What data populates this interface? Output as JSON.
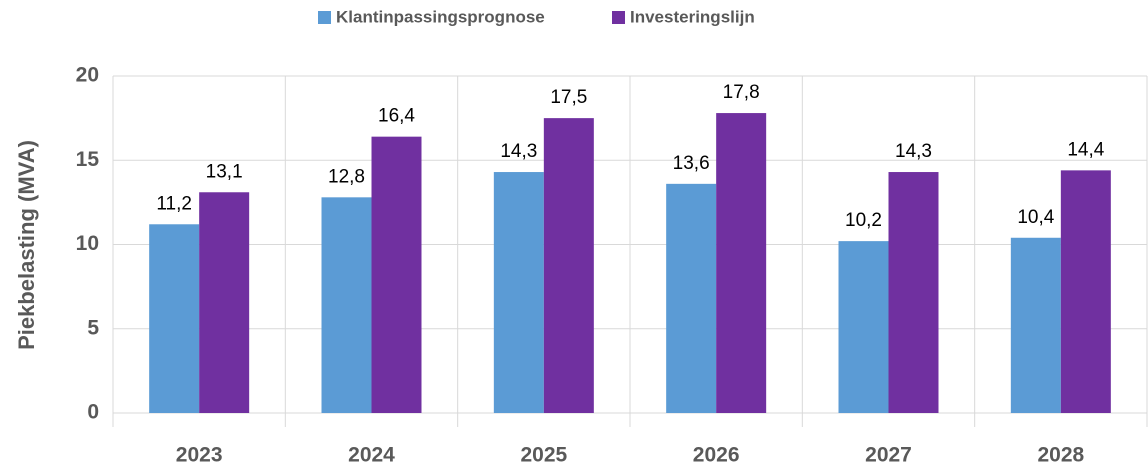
{
  "chart_data": {
    "type": "bar",
    "categories": [
      "2023",
      "2024",
      "2025",
      "2026",
      "2027",
      "2028"
    ],
    "series": [
      {
        "name": "Klantinpassingsprognose",
        "color": "#5b9bd5",
        "values": [
          11.2,
          12.8,
          14.3,
          13.6,
          10.2,
          10.4
        ],
        "value_labels": [
          "11,2",
          "12,8",
          "14,3",
          "13,6",
          "10,2",
          "10,4"
        ]
      },
      {
        "name": "Investeringslijn",
        "color": "#7030a0",
        "values": [
          13.1,
          16.4,
          17.5,
          17.8,
          14.3,
          14.4
        ],
        "value_labels": [
          "13,1",
          "16,4",
          "17,5",
          "17,8",
          "14,3",
          "14,4"
        ]
      }
    ],
    "y_label": "Piekbelasting (MVA)",
    "ylim": [
      0,
      20
    ],
    "yticks": [
      0,
      5,
      10,
      15,
      20
    ],
    "grid": true,
    "legend": "top"
  }
}
